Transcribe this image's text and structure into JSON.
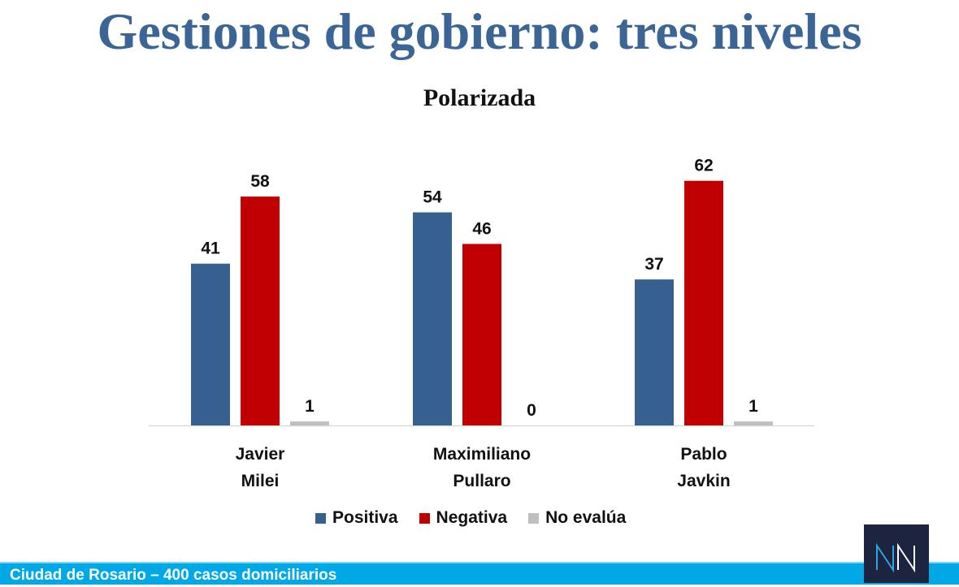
{
  "header": {
    "title": "Gestiones de gobierno: tres niveles"
  },
  "footer": {
    "text": "Ciudad de Rosario – 400 casos domiciliarios",
    "logo": "NN"
  },
  "colors": {
    "positiva": "#36608f",
    "negativa": "#c00000",
    "no_evalua": "#bfbfbf",
    "band": "#00a8e6"
  },
  "chart_data": {
    "type": "bar",
    "title": "Polarizada",
    "categories": [
      [
        "Javier",
        "Milei"
      ],
      [
        "Maximiliano",
        "Pullaro"
      ],
      [
        "Pablo",
        "Javkin"
      ]
    ],
    "series": [
      {
        "name": "Positiva",
        "values": [
          41,
          54,
          37
        ]
      },
      {
        "name": "Negativa",
        "values": [
          58,
          46,
          62
        ]
      },
      {
        "name": "No evalúa",
        "values": [
          1,
          0,
          1
        ]
      }
    ],
    "ylim": [
      0,
      65
    ],
    "grid": false,
    "legend": "bottom"
  }
}
